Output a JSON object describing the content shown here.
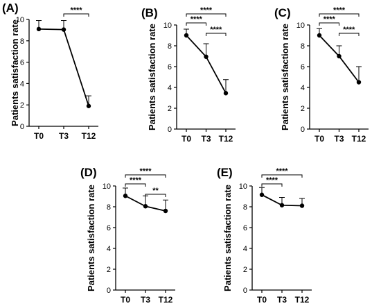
{
  "chart_data": [
    {
      "type": "line",
      "panel_label": "(A)",
      "ylabel": "Patients satisfaction rate",
      "categories": [
        "T0",
        "T3",
        "T12"
      ],
      "values": [
        9.1,
        9.05,
        1.9
      ],
      "error_upper": [
        9.9,
        9.9,
        2.85
      ],
      "ylim": [
        0,
        10
      ],
      "yticks": [
        "0",
        "2",
        "4",
        "6",
        "8",
        "10"
      ],
      "significance": [
        {
          "from": 1,
          "to": 2,
          "label": "****"
        }
      ]
    },
    {
      "type": "line",
      "panel_label": "(B)",
      "ylabel": "Patients satisfaction rate",
      "categories": [
        "T0",
        "T3",
        "T12"
      ],
      "values": [
        9.0,
        6.95,
        3.45
      ],
      "error_upper": [
        9.6,
        8.2,
        4.75
      ],
      "ylim": [
        0,
        10
      ],
      "yticks": [
        "0",
        "2",
        "4",
        "6",
        "8",
        "10"
      ],
      "significance": [
        {
          "from": 0,
          "to": 1,
          "label": "****"
        },
        {
          "from": 0,
          "to": 2,
          "label": "****"
        },
        {
          "from": 1,
          "to": 2,
          "label": "****"
        }
      ]
    },
    {
      "type": "line",
      "panel_label": "(C)",
      "ylabel": "Patients satisfaction rate",
      "categories": [
        "T0",
        "T3",
        "T12"
      ],
      "values": [
        9.0,
        7.0,
        4.5
      ],
      "error_upper": [
        9.65,
        8.0,
        6.0
      ],
      "ylim": [
        0,
        10
      ],
      "yticks": [
        "0",
        "2",
        "4",
        "6",
        "8",
        "10"
      ],
      "significance": [
        {
          "from": 0,
          "to": 1,
          "label": "****"
        },
        {
          "from": 0,
          "to": 2,
          "label": "****"
        },
        {
          "from": 1,
          "to": 2,
          "label": "****"
        }
      ]
    },
    {
      "type": "line",
      "panel_label": "(D)",
      "ylabel": "Patients satisfaction rate",
      "categories": [
        "T0",
        "T3",
        "T12"
      ],
      "values": [
        9.05,
        8.05,
        7.6
      ],
      "error_upper": [
        9.8,
        9.05,
        8.65
      ],
      "ylim": [
        0,
        10
      ],
      "yticks": [
        "0",
        "2",
        "4",
        "6",
        "8",
        "10"
      ],
      "significance": [
        {
          "from": 0,
          "to": 1,
          "label": "****"
        },
        {
          "from": 0,
          "to": 2,
          "label": "****"
        },
        {
          "from": 1,
          "to": 2,
          "label": "**"
        }
      ]
    },
    {
      "type": "line",
      "panel_label": "(E)",
      "ylabel": "Patients satisfaction rate",
      "categories": [
        "T0",
        "T3",
        "T12"
      ],
      "values": [
        9.15,
        8.15,
        8.1
      ],
      "error_upper": [
        9.85,
        8.9,
        8.8
      ],
      "ylim": [
        0,
        10
      ],
      "yticks": [
        "0",
        "2",
        "4",
        "6",
        "8",
        "10"
      ],
      "significance": [
        {
          "from": 0,
          "to": 1,
          "label": "****"
        },
        {
          "from": 0,
          "to": 2,
          "label": "****"
        }
      ]
    }
  ]
}
